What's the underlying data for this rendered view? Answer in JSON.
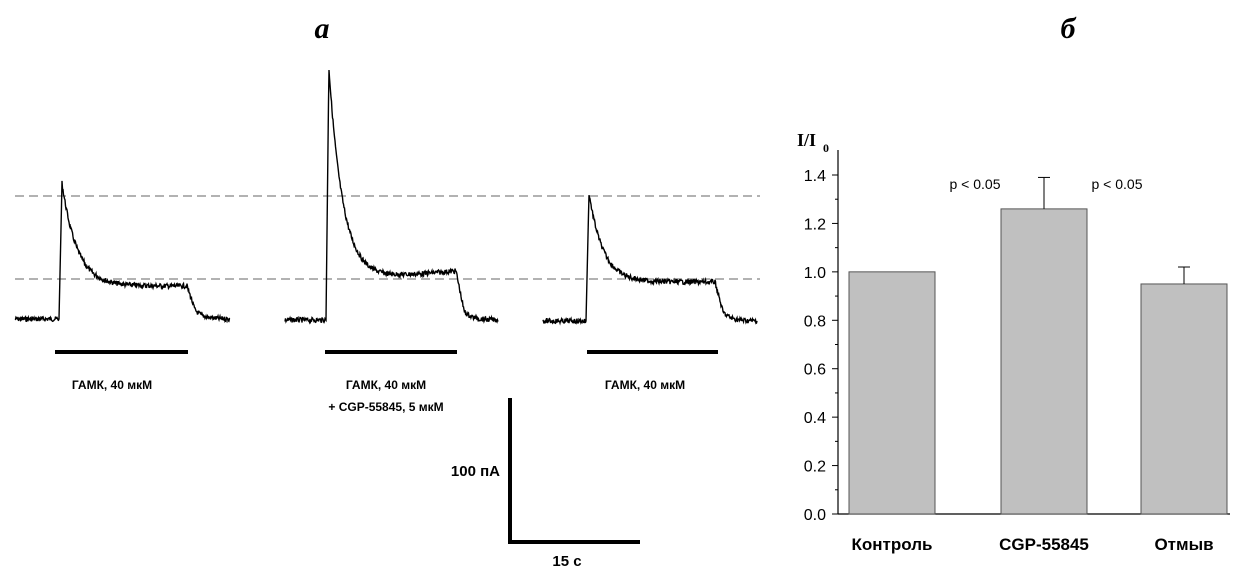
{
  "panels": {
    "a": "а",
    "b": "б"
  },
  "traces": {
    "labels": [
      {
        "line1": "ГАМК, 40 мкМ",
        "line2": ""
      },
      {
        "line1": "ГАМК, 40 мкМ",
        "line2": "+ CGP-55845, 5 мкМ"
      },
      {
        "line1": "ГАМК, 40 мкМ",
        "line2": ""
      }
    ],
    "scale_bar": {
      "current": "100 пА",
      "time": "15 с"
    }
  },
  "chart_data": {
    "type": "bar",
    "categories": [
      "Контроль",
      "CGP-55845",
      "Отмыв"
    ],
    "values": [
      1.0,
      1.26,
      0.95
    ],
    "errors": [
      0,
      0.13,
      0.07
    ],
    "ylabel": "I/I",
    "ylabel_sub": "0",
    "ylim": [
      0.0,
      1.4
    ],
    "yticks": [
      "0.0",
      "0.2",
      "0.4",
      "0.6",
      "0.8",
      "1.0",
      "1.2",
      "1.4"
    ],
    "annotations": [
      "p < 0.05",
      "p < 0.05"
    ],
    "bar_color": "#c0c0c0"
  }
}
